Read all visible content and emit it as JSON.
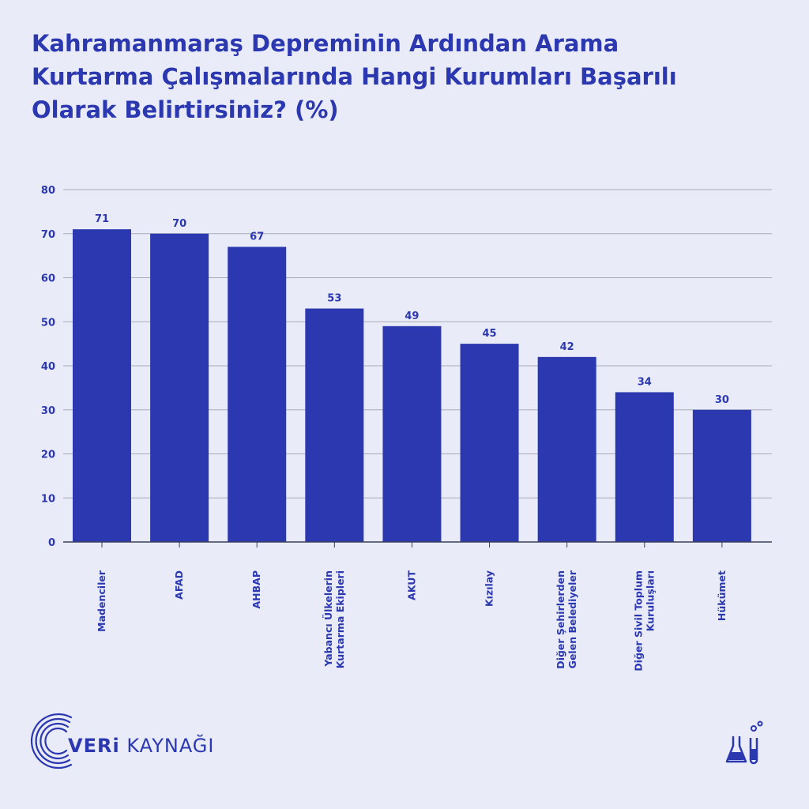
{
  "title_lines": [
    "Kahramanmaraş Depreminin Ardından Arama",
    "Kurtarma Çalışmalarında Hangi Kurumları Başarılı",
    "Olarak Belirtirsiniz? (%)"
  ],
  "chart_data": {
    "type": "bar",
    "title": "Kahramanmaraş Depreminin Ardından Arama Kurtarma Çalışmalarında Hangi Kurumları Başarılı Olarak Belirtirsiniz? (%)",
    "categories": [
      [
        "Madenciler"
      ],
      [
        "AFAD"
      ],
      [
        "AHBAP"
      ],
      [
        "Yabancı Ülkelerin",
        "Kurtarma Ekipleri"
      ],
      [
        "AKUT"
      ],
      [
        "Kızılay"
      ],
      [
        "Diğer Şehirlerden",
        "Gelen Belediyeler"
      ],
      [
        "Diğer Sivil Toplum",
        "Kuruluşları"
      ],
      [
        "Hükümet"
      ]
    ],
    "values": [
      71,
      70,
      67,
      53,
      49,
      45,
      42,
      34,
      30
    ],
    "ylim": [
      0,
      80
    ],
    "yticks": [
      0,
      10,
      20,
      30,
      40,
      50,
      60,
      70,
      80
    ],
    "grid": true,
    "bar_color": "#2b38b0",
    "grid_color": "#a9abb8"
  },
  "logo": {
    "bold": "VERi",
    "rest": "KAYNAĞI"
  },
  "icons": {
    "logo": "arc-logo-icon",
    "lab": "lab-flask-icon"
  }
}
